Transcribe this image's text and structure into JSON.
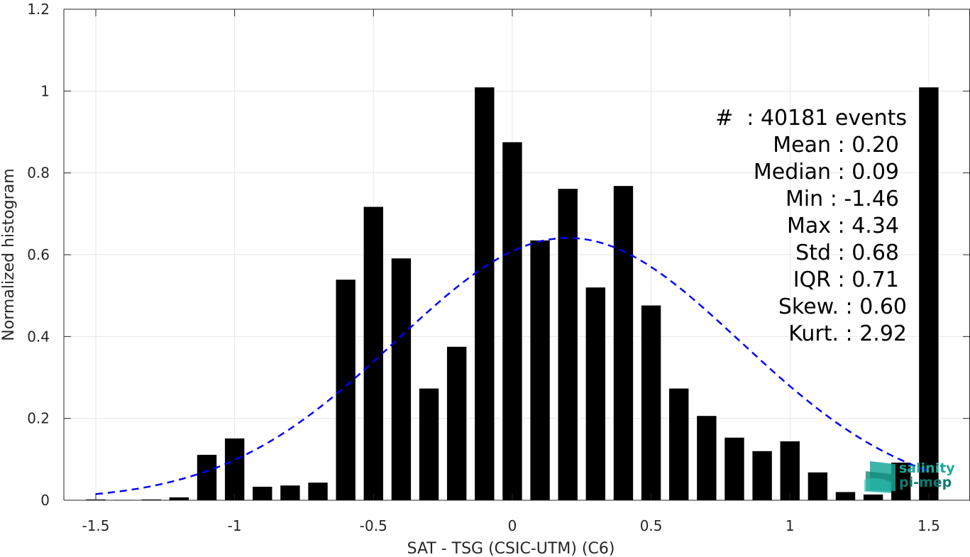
{
  "chart_data": {
    "type": "bar",
    "xlabel": "SAT - TSG (CSIC-UTM) (C6)",
    "ylabel": "Normalized histogram",
    "xlim": [
      -1.55,
      1.6
    ],
    "ylim": [
      0,
      1.2
    ],
    "xticks": [
      -1.5,
      -1,
      -0.5,
      0,
      0.5,
      1,
      1.5
    ],
    "xtick_labels": [
      "-1.5",
      "-1",
      "-0.5",
      "0",
      "0.5",
      "1",
      "1.5"
    ],
    "yticks": [
      0,
      0.2,
      0.4,
      0.6,
      0.8,
      1,
      1.2
    ],
    "ytick_labels": [
      "0",
      "0.2",
      "0.4",
      "0.6",
      "0.8",
      "1",
      "1.2"
    ],
    "grid": true,
    "bar_width": 0.07,
    "x": [
      -1.5,
      -1.4,
      -1.3,
      -1.2,
      -1.1,
      -1.0,
      -0.9,
      -0.8,
      -0.7,
      -0.6,
      -0.5,
      -0.4,
      -0.3,
      -0.2,
      -0.1,
      0.0,
      0.1,
      0.2,
      0.3,
      0.4,
      0.5,
      0.6,
      0.7,
      0.8,
      0.9,
      1.0,
      1.1,
      1.2,
      1.3,
      1.4,
      1.5
    ],
    "values": [
      0.002,
      0.001,
      0.002,
      0.007,
      0.111,
      0.151,
      0.033,
      0.036,
      0.043,
      0.539,
      0.717,
      0.591,
      0.273,
      0.375,
      1.009,
      0.875,
      0.635,
      0.761,
      0.52,
      0.768,
      0.476,
      0.273,
      0.206,
      0.153,
      0.12,
      0.144,
      0.068,
      0.02,
      0.014,
      0.092,
      1.009
    ],
    "fit_curve": {
      "style": "dashed",
      "color": "#0000ff",
      "mean": 0.2,
      "std": 0.62,
      "peak": 0.641,
      "x_range": [
        -1.5,
        1.5
      ]
    },
    "stats_text": [
      "#  : 40181 events",
      "Mean : 0.20",
      "Median : 0.09",
      "Min : -1.46",
      "Max : 4.34",
      "Std : 0.68",
      "IQR : 0.71",
      "Skew. : 0.60",
      "Kurt. : 2.92"
    ]
  },
  "logo": {
    "line1": "salinity",
    "line2": "pi-mep"
  },
  "colors": {
    "bar": "#000000",
    "fit": "#0000ff",
    "grid": "#e6e6e6",
    "axis": "#262626",
    "logo": "#1aa89a"
  }
}
